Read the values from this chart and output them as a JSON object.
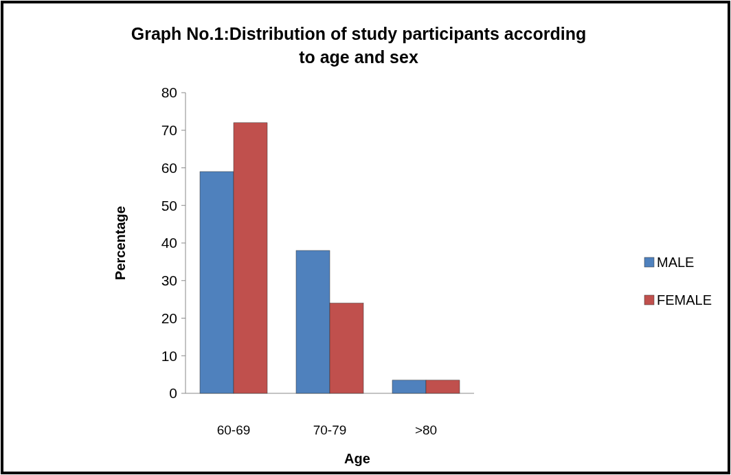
{
  "chart_data": {
    "type": "bar",
    "title": "Graph No.1:Distribution of study participants according to age and sex",
    "xlabel": "Age",
    "ylabel": "Percentage",
    "categories": [
      "60-69",
      "70-79",
      ">80"
    ],
    "series": [
      {
        "name": "MALE",
        "color": "#4f81bd",
        "values": [
          59,
          38,
          3.5
        ]
      },
      {
        "name": "FEMALE",
        "color": "#c0504d",
        "values": [
          72,
          24,
          3.5
        ]
      }
    ],
    "ylim": [
      0,
      80
    ],
    "yticks": [
      0,
      10,
      20,
      30,
      40,
      50,
      60,
      70,
      80
    ],
    "grid": false,
    "legend": "right"
  }
}
